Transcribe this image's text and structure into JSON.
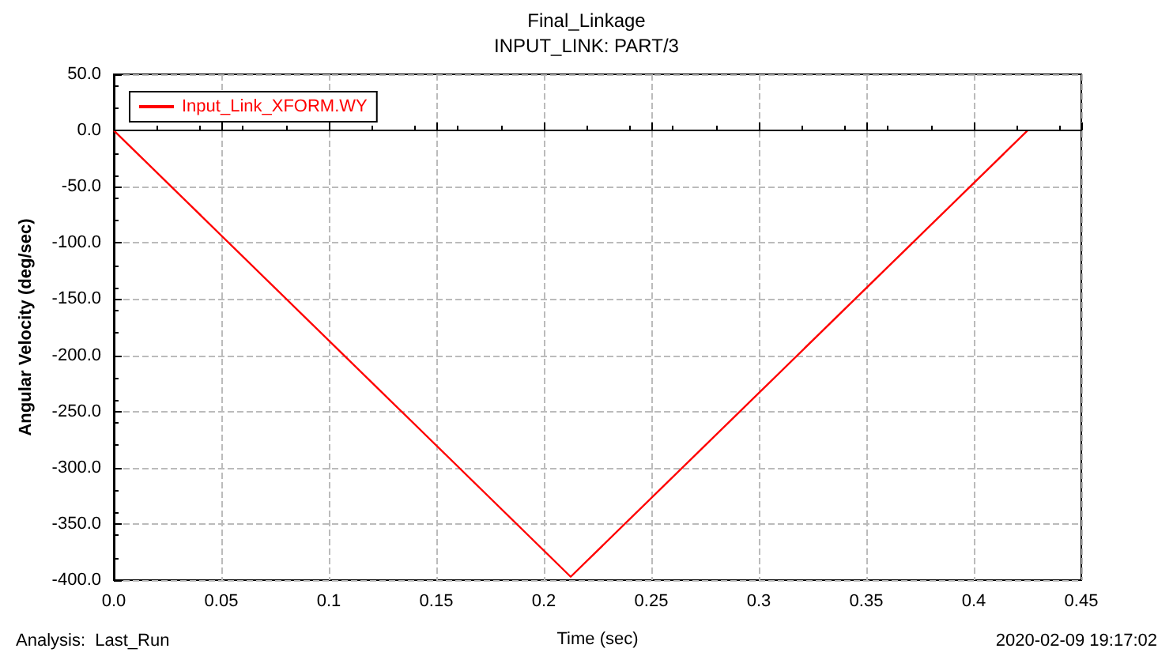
{
  "chart_data": {
    "type": "line",
    "title": "Final_Linkage",
    "subtitle": "INPUT_LINK: PART/3",
    "xlabel": "Time (sec)",
    "ylabel": "Angular Velocity (deg/sec)",
    "x": [
      0,
      0.2125,
      0.425
    ],
    "series": [
      {
        "name": "Input_Link_XFORM.WY",
        "color": "#ff0000",
        "values": [
          0,
          -397,
          0
        ]
      }
    ],
    "xlim": [
      0,
      0.45
    ],
    "xticks": [
      {
        "value": 0,
        "label": "0.0"
      },
      0.05,
      0.1,
      0.15,
      0.2,
      0.25,
      0.3,
      0.35,
      0.4,
      0.45
    ],
    "ylim": [
      -400,
      50
    ],
    "yticks": [
      {
        "value": -400,
        "label": "-400.0"
      },
      {
        "value": -350,
        "label": "-350.0"
      },
      {
        "value": -300,
        "label": "-300.0"
      },
      {
        "value": -250,
        "label": "-250.0"
      },
      {
        "value": -200,
        "label": "-200.0"
      },
      {
        "value": -150,
        "label": "-150.0"
      },
      {
        "value": -100,
        "label": "-100.0"
      },
      {
        "value": -50,
        "label": "-50.0"
      },
      {
        "value": 0,
        "label": "0.0"
      },
      {
        "value": 50,
        "label": "50.0"
      }
    ],
    "ref_lines": [
      {
        "axis": "y",
        "value": 0,
        "color": "#000000"
      }
    ],
    "annotations": [
      "Analysis:  Last_Run",
      "2020-02-09 19:17:02"
    ],
    "grid": true,
    "legend": "top left",
    "marker": "none",
    "line_style": "solid"
  }
}
